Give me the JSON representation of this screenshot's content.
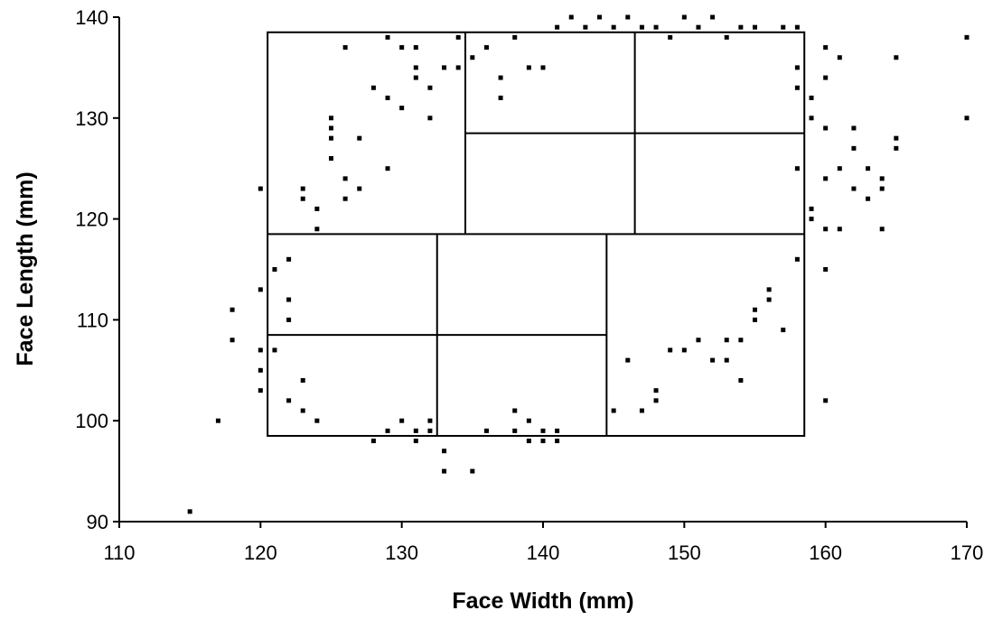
{
  "chart_data": {
    "type": "scatter",
    "xlabel": "Face Width (mm)",
    "ylabel": "Face Length (mm)",
    "xlim": [
      110,
      170
    ],
    "ylim": [
      90,
      140
    ],
    "xticks": [
      110,
      120,
      130,
      140,
      150,
      160,
      170
    ],
    "yticks": [
      90,
      100,
      110,
      120,
      130,
      140
    ],
    "grid": false,
    "legend": "none",
    "point_color": "#000000",
    "sizing_panel": {
      "outer": {
        "x": [
          120.5,
          158.5
        ],
        "y": [
          98.5,
          138.5
        ]
      },
      "row_split_y": 118.5,
      "lower_row": {
        "x_splits": [
          132.5,
          144.5
        ],
        "inner_split_y": 108.5,
        "inner_split_x": [
          120.5,
          144.5
        ]
      },
      "upper_row": {
        "x_splits": [
          134.5,
          146.5
        ],
        "inner_split_y": 128.5,
        "inner_split_x": [
          134.5,
          158.5
        ]
      }
    },
    "points": [
      [
        115,
        91
      ],
      [
        117,
        100
      ],
      [
        118,
        108
      ],
      [
        118,
        111
      ],
      [
        120,
        103
      ],
      [
        120,
        105
      ],
      [
        120,
        107
      ],
      [
        120,
        113
      ],
      [
        120,
        123
      ],
      [
        121,
        107
      ],
      [
        121,
        115
      ],
      [
        122,
        102
      ],
      [
        122,
        110
      ],
      [
        122,
        112
      ],
      [
        122,
        116
      ],
      [
        123,
        101
      ],
      [
        123,
        104
      ],
      [
        123,
        122
      ],
      [
        123,
        123
      ],
      [
        124,
        100
      ],
      [
        124,
        119
      ],
      [
        124,
        121
      ],
      [
        125,
        126
      ],
      [
        125,
        128
      ],
      [
        125,
        129
      ],
      [
        125,
        130
      ],
      [
        126,
        122
      ],
      [
        126,
        124
      ],
      [
        126,
        137
      ],
      [
        127,
        123
      ],
      [
        127,
        128
      ],
      [
        128,
        98
      ],
      [
        128,
        133
      ],
      [
        129,
        99
      ],
      [
        129,
        125
      ],
      [
        129,
        132
      ],
      [
        129,
        138
      ],
      [
        130,
        100
      ],
      [
        130,
        131
      ],
      [
        130,
        137
      ],
      [
        131,
        98
      ],
      [
        131,
        99
      ],
      [
        131,
        134
      ],
      [
        131,
        135
      ],
      [
        131,
        137
      ],
      [
        132,
        99
      ],
      [
        132,
        100
      ],
      [
        132,
        130
      ],
      [
        132,
        133
      ],
      [
        133,
        95
      ],
      [
        133,
        97
      ],
      [
        133,
        135
      ],
      [
        134,
        135
      ],
      [
        134,
        138
      ],
      [
        135,
        95
      ],
      [
        135,
        136
      ],
      [
        136,
        99
      ],
      [
        136,
        137
      ],
      [
        137,
        132
      ],
      [
        137,
        134
      ],
      [
        138,
        99
      ],
      [
        138,
        101
      ],
      [
        138,
        138
      ],
      [
        139,
        98
      ],
      [
        139,
        100
      ],
      [
        139,
        135
      ],
      [
        140,
        98
      ],
      [
        140,
        99
      ],
      [
        140,
        135
      ],
      [
        141,
        98
      ],
      [
        141,
        99
      ],
      [
        141,
        139
      ],
      [
        142,
        140
      ],
      [
        143,
        139
      ],
      [
        144,
        140
      ],
      [
        145,
        139
      ],
      [
        146,
        140
      ],
      [
        147,
        139
      ],
      [
        148,
        139
      ],
      [
        149,
        138
      ],
      [
        150,
        140
      ],
      [
        151,
        139
      ],
      [
        152,
        140
      ],
      [
        153,
        138
      ],
      [
        154,
        139
      ],
      [
        155,
        139
      ],
      [
        157,
        139
      ],
      [
        145,
        101
      ],
      [
        146,
        106
      ],
      [
        147,
        101
      ],
      [
        148,
        102
      ],
      [
        148,
        103
      ],
      [
        149,
        107
      ],
      [
        150,
        107
      ],
      [
        151,
        108
      ],
      [
        152,
        106
      ],
      [
        153,
        106
      ],
      [
        153,
        108
      ],
      [
        154,
        104
      ],
      [
        154,
        108
      ],
      [
        155,
        110
      ],
      [
        155,
        111
      ],
      [
        156,
        112
      ],
      [
        156,
        113
      ],
      [
        157,
        109
      ],
      [
        158,
        116
      ],
      [
        158,
        125
      ],
      [
        158,
        133
      ],
      [
        158,
        135
      ],
      [
        158,
        139
      ],
      [
        159,
        120
      ],
      [
        159,
        121
      ],
      [
        159,
        130
      ],
      [
        159,
        132
      ],
      [
        160,
        102
      ],
      [
        160,
        115
      ],
      [
        160,
        119
      ],
      [
        160,
        124
      ],
      [
        160,
        129
      ],
      [
        160,
        134
      ],
      [
        160,
        137
      ],
      [
        161,
        119
      ],
      [
        161,
        125
      ],
      [
        161,
        136
      ],
      [
        162,
        123
      ],
      [
        162,
        127
      ],
      [
        162,
        129
      ],
      [
        163,
        122
      ],
      [
        163,
        125
      ],
      [
        164,
        119
      ],
      [
        164,
        123
      ],
      [
        164,
        124
      ],
      [
        165,
        127
      ],
      [
        165,
        128
      ],
      [
        165,
        136
      ],
      [
        170,
        130
      ],
      [
        170,
        138
      ]
    ]
  }
}
